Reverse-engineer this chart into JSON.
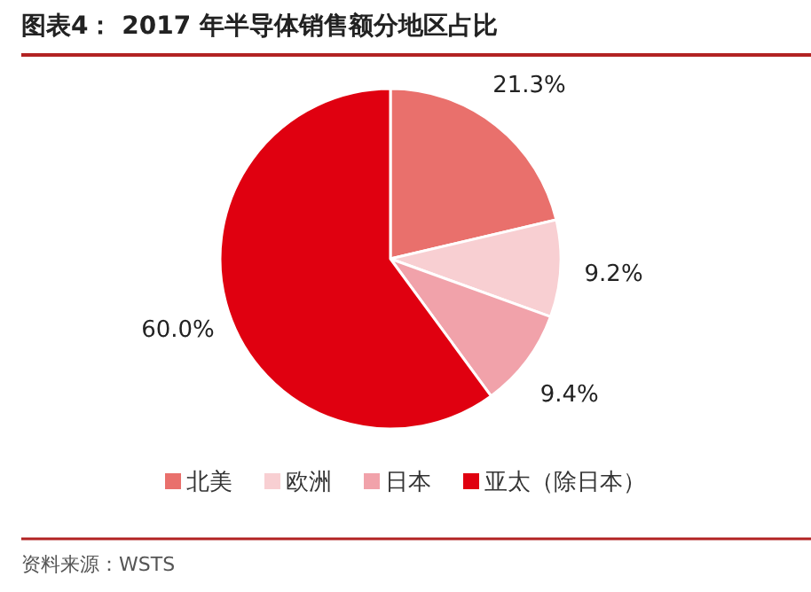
{
  "chart_data": {
    "type": "pie",
    "title": "图表4：  2017 年半导体销售额分地区占比",
    "categories": [
      "北美",
      "欧洲",
      "日本",
      "亚太（除日本）"
    ],
    "values": [
      21.3,
      9.2,
      9.4,
      60.0
    ],
    "value_labels": [
      "21.3%",
      "9.2%",
      "9.4%",
      "60.0%"
    ],
    "colors": [
      "#e9706c",
      "#f8cfd2",
      "#f1a2aa",
      "#e00010"
    ],
    "legend": "bottom",
    "annotations": [
      "资料来源：WSTS"
    ]
  }
}
